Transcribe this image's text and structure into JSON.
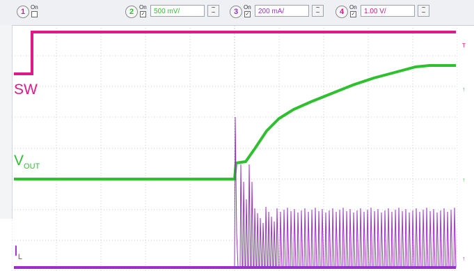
{
  "toolbar": {
    "channels": [
      {
        "number": "1",
        "on_label": "On",
        "scale": "",
        "color": "#e0198a"
      },
      {
        "number": "2",
        "on_label": "On",
        "scale": "500 mV/",
        "color": "#2fbf2f"
      },
      {
        "number": "3",
        "on_label": "On",
        "scale": "200 mA/",
        "color": "#9b2fc8"
      },
      {
        "number": "4",
        "on_label": "On",
        "scale": "1.00 V/",
        "color": "#d0148c"
      }
    ],
    "coupling_icon": "ac-dc-coupling-icon"
  },
  "traces": {
    "sw": {
      "label": "SW",
      "color": "#e0198a"
    },
    "vout": {
      "label": "V",
      "sub": "OUT",
      "color": "#2fbf2f"
    },
    "il": {
      "label": "I",
      "sub": "L",
      "color": "#9b2fc8"
    }
  },
  "markers": {
    "m1": "T",
    "m2": "↑",
    "m3": "↑",
    "m4": "↑"
  },
  "colors": {
    "grid": "#c8ccd2",
    "background": "#ffffff",
    "toolbar": "#eef0f3"
  }
}
